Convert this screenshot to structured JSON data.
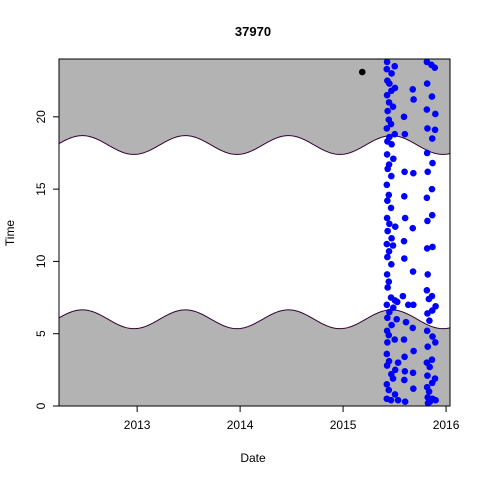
{
  "chart_data": {
    "type": "scatter",
    "title": "37970",
    "xlabel": "Date",
    "ylabel": "Time",
    "xlim": [
      "2012-03-30",
      "2016-01-15"
    ],
    "ylim": [
      0,
      24
    ],
    "x_ticks": [
      {
        "date": "2013-01-01",
        "label": "2013"
      },
      {
        "date": "2014-01-01",
        "label": "2014"
      },
      {
        "date": "2015-01-01",
        "label": "2015"
      },
      {
        "date": "2016-01-01",
        "label": "2016"
      }
    ],
    "y_ticks": [
      0,
      5,
      10,
      15,
      20
    ],
    "grid": false,
    "night_shading": {
      "color": "#b3b3b3",
      "line_color": "#330033",
      "sunrise": {
        "mean_hour": 6.0,
        "amplitude_hours": 0.65,
        "peak_date": "2013-06-21"
      },
      "sunset": {
        "mean_hour": 18.05,
        "amplitude_hours": 0.65,
        "peak_date": "2013-06-21"
      }
    },
    "series": [
      {
        "color": "#000000",
        "points": [
          [
            "2015-03-10",
            23.1
          ]
        ]
      },
      {
        "color": "#0000ff",
        "date_range": [
          "2015-05-25",
          "2015-12-31"
        ],
        "points": [
          [
            "2015-06-05",
            0.5
          ],
          [
            "2015-06-05",
            1.5
          ],
          [
            "2015-06-06",
            2.8
          ],
          [
            "2015-06-05",
            3.6
          ],
          [
            "2015-06-07",
            4.4
          ],
          [
            "2015-06-06",
            5.2
          ],
          [
            "2015-06-07",
            6.1
          ],
          [
            "2015-06-05",
            7.0
          ],
          [
            "2015-06-08",
            8.2
          ],
          [
            "2015-06-06",
            9.1
          ],
          [
            "2015-06-07",
            10.3
          ],
          [
            "2015-06-05",
            11.2
          ],
          [
            "2015-06-08",
            12.1
          ],
          [
            "2015-06-06",
            13.0
          ],
          [
            "2015-06-07",
            14.2
          ],
          [
            "2015-06-05",
            15.3
          ],
          [
            "2015-06-08",
            16.4
          ],
          [
            "2015-06-06",
            17.4
          ],
          [
            "2015-06-07",
            18.3
          ],
          [
            "2015-06-05",
            19.2
          ],
          [
            "2015-06-08",
            20.4
          ],
          [
            "2015-06-06",
            21.5
          ],
          [
            "2015-06-07",
            22.5
          ],
          [
            "2015-06-05",
            23.3
          ],
          [
            "2015-06-06",
            23.8
          ],
          [
            "2015-06-12",
            1.1
          ],
          [
            "2015-06-13",
            3.1
          ],
          [
            "2015-06-12",
            4.9
          ],
          [
            "2015-06-14",
            6.5
          ],
          [
            "2015-06-12",
            8.6
          ],
          [
            "2015-06-13",
            10.7
          ],
          [
            "2015-06-14",
            12.6
          ],
          [
            "2015-06-12",
            14.6
          ],
          [
            "2015-06-13",
            16.7
          ],
          [
            "2015-06-14",
            18.6
          ],
          [
            "2015-06-12",
            19.8
          ],
          [
            "2015-06-13",
            21.0
          ],
          [
            "2015-06-14",
            22.3
          ],
          [
            "2015-06-20",
            0.4
          ],
          [
            "2015-06-21",
            2.2
          ],
          [
            "2015-06-22",
            5.6
          ],
          [
            "2015-06-20",
            7.5
          ],
          [
            "2015-06-21",
            9.8
          ],
          [
            "2015-06-22",
            11.6
          ],
          [
            "2015-06-20",
            13.7
          ],
          [
            "2015-06-21",
            15.9
          ],
          [
            "2015-06-22",
            18.1
          ],
          [
            "2015-06-20",
            19.5
          ],
          [
            "2015-06-21",
            21.8
          ],
          [
            "2015-06-22",
            23.0
          ],
          [
            "2015-06-27",
            1.9
          ],
          [
            "2015-06-28",
            6.8
          ],
          [
            "2015-06-27",
            11.1
          ],
          [
            "2015-06-28",
            17.1
          ],
          [
            "2015-06-27",
            20.7
          ],
          [
            "2015-07-03",
            23.5
          ],
          [
            "2015-07-04",
            22.0
          ],
          [
            "2015-07-03",
            18.8
          ],
          [
            "2015-07-05",
            12.4
          ],
          [
            "2015-07-04",
            7.3
          ],
          [
            "2015-07-03",
            4.6
          ],
          [
            "2015-07-05",
            2.5
          ],
          [
            "2015-07-04",
            0.8
          ],
          [
            "2015-07-10",
            6.0
          ],
          [
            "2015-07-12",
            7.2
          ],
          [
            "2015-07-15",
            3.0
          ],
          [
            "2015-07-15",
            0.4
          ],
          [
            "2015-08-01",
            7.6
          ],
          [
            "2015-08-12",
            5.8
          ],
          [
            "2015-08-20",
            7.0
          ],
          [
            "2015-08-05",
            20.0
          ],
          [
            "2015-08-08",
            18.8
          ],
          [
            "2015-08-07",
            16.2
          ],
          [
            "2015-08-06",
            14.5
          ],
          [
            "2015-08-09",
            13.0
          ],
          [
            "2015-08-05",
            11.4
          ],
          [
            "2015-08-06",
            10.2
          ],
          [
            "2015-08-05",
            4.6
          ],
          [
            "2015-08-07",
            3.4
          ],
          [
            "2015-08-08",
            2.4
          ],
          [
            "2015-08-06",
            1.8
          ],
          [
            "2015-08-09",
            0.3
          ],
          [
            "2015-09-05",
            21.9
          ],
          [
            "2015-09-08",
            21.2
          ],
          [
            "2015-09-07",
            16.1
          ],
          [
            "2015-09-05",
            12.3
          ],
          [
            "2015-09-06",
            9.3
          ],
          [
            "2015-09-07",
            7.0
          ],
          [
            "2015-09-05",
            5.4
          ],
          [
            "2015-09-08",
            3.8
          ],
          [
            "2015-09-06",
            2.3
          ],
          [
            "2015-09-07",
            1.2
          ],
          [
            "2015-10-25",
            23.8
          ],
          [
            "2015-10-26",
            22.3
          ],
          [
            "2015-10-25",
            20.5
          ],
          [
            "2015-10-27",
            19.2
          ],
          [
            "2015-10-26",
            17.5
          ],
          [
            "2015-10-28",
            16.2
          ],
          [
            "2015-10-25",
            14.4
          ],
          [
            "2015-10-27",
            12.8
          ],
          [
            "2015-10-26",
            10.9
          ],
          [
            "2015-10-28",
            9.1
          ],
          [
            "2015-10-25",
            8.0
          ],
          [
            "2015-10-27",
            6.4
          ],
          [
            "2015-10-26",
            5.2
          ],
          [
            "2015-10-28",
            4.1
          ],
          [
            "2015-10-25",
            3.0
          ],
          [
            "2015-10-27",
            2.1
          ],
          [
            "2015-10-26",
            1.3
          ],
          [
            "2015-10-28",
            0.6
          ],
          [
            "2015-10-29",
            0.2
          ],
          [
            "2015-11-01",
            7.4
          ],
          [
            "2015-11-03",
            5.9
          ],
          [
            "2015-11-04",
            2.7
          ],
          [
            "2015-11-02",
            1.0
          ],
          [
            "2015-11-05",
            0.3
          ],
          [
            "2015-11-10",
            23.6
          ],
          [
            "2015-11-12",
            21.4
          ],
          [
            "2015-11-13",
            18.5
          ],
          [
            "2015-11-14",
            16.8
          ],
          [
            "2015-11-12",
            15.0
          ],
          [
            "2015-11-13",
            13.2
          ],
          [
            "2015-11-14",
            11.0
          ],
          [
            "2015-11-12",
            7.6
          ],
          [
            "2015-11-13",
            6.6
          ],
          [
            "2015-11-14",
            4.8
          ],
          [
            "2015-11-12",
            3.2
          ],
          [
            "2015-11-13",
            1.6
          ],
          [
            "2015-11-14",
            0.5
          ],
          [
            "2015-11-22",
            23.4
          ],
          [
            "2015-11-24",
            20.2
          ],
          [
            "2015-11-23",
            19.1
          ],
          [
            "2015-11-25",
            6.9
          ],
          [
            "2015-11-24",
            4.4
          ],
          [
            "2015-11-23",
            1.9
          ],
          [
            "2015-11-25",
            0.4
          ]
        ]
      }
    ]
  }
}
